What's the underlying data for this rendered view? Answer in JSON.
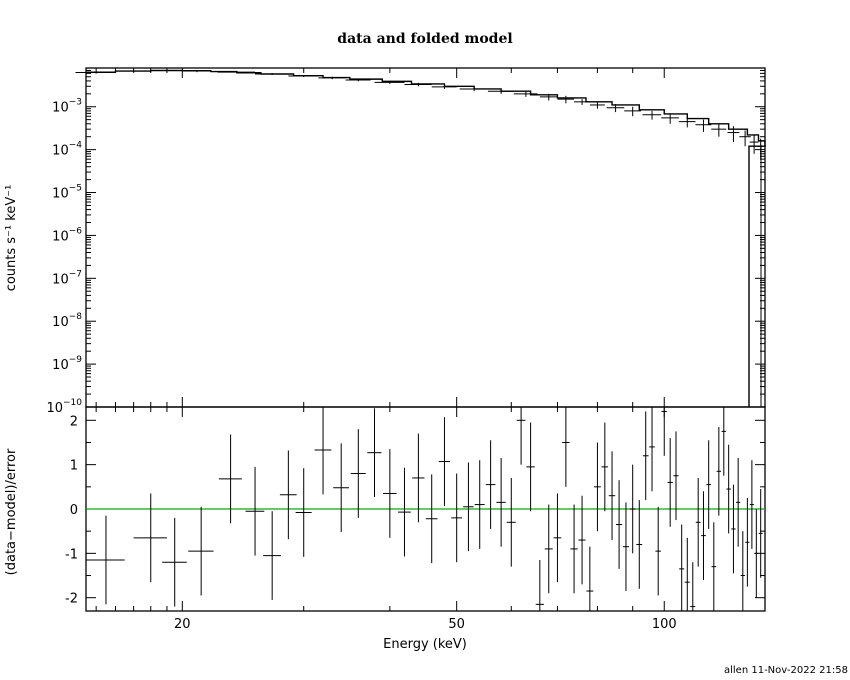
{
  "chart_data": [
    {
      "type": "scatter",
      "title": "data and folded model",
      "ylabel": "counts s⁻¹ keV⁻¹",
      "y_scale": "log",
      "ylim": [
        1e-10,
        0.008
      ],
      "xlim": [
        14.5,
        140
      ],
      "x_scale": "log",
      "y_ticks": [
        {
          "value": 1e-10,
          "base": "10",
          "exp": "−10"
        },
        {
          "value": 1e-09,
          "base": "10",
          "exp": "−9"
        },
        {
          "value": 1e-08,
          "base": "10",
          "exp": "−8"
        },
        {
          "value": 1e-07,
          "base": "10",
          "exp": "−7"
        },
        {
          "value": 1e-06,
          "base": "10",
          "exp": "−6"
        },
        {
          "value": 1e-05,
          "base": "10",
          "exp": "−5"
        },
        {
          "value": 0.0001,
          "base": "10",
          "exp": "−4"
        },
        {
          "value": 0.001,
          "base": "10",
          "exp": "−3"
        }
      ],
      "series": [
        {
          "role": "data",
          "color": "#000000",
          "x": [
            15,
            17,
            19,
            21,
            24,
            27,
            30,
            33,
            36,
            40,
            44,
            48,
            53,
            58,
            63,
            68,
            72,
            76,
            80,
            85,
            90,
            96,
            102,
            108,
            114,
            120,
            126,
            131,
            135,
            138
          ],
          "y": [
            0.0063,
            0.0068,
            0.007,
            0.0068,
            0.0064,
            0.0058,
            0.0052,
            0.0047,
            0.0042,
            0.0037,
            0.0033,
            0.0029,
            0.0026,
            0.0023,
            0.002,
            0.0017,
            0.0015,
            0.0013,
            0.0011,
            0.00095,
            0.0008,
            0.00065,
            0.00055,
            0.00045,
            0.00038,
            0.0003,
            0.00025,
            0.0002,
            0.00015,
            0.00012
          ],
          "xerr": [
            1.0,
            1.0,
            1.0,
            1.0,
            1.5,
            1.5,
            1.5,
            1.5,
            1.5,
            2.0,
            2.0,
            2.0,
            2.5,
            2.5,
            2.5,
            2.0,
            2.0,
            2.0,
            2.0,
            2.5,
            2.5,
            3.0,
            3.0,
            3.0,
            3.0,
            3.0,
            2.5,
            2.5,
            2.0,
            1.5
          ],
          "yerr": [
            0.0004,
            0.0004,
            0.0004,
            0.0004,
            0.0004,
            0.0003,
            0.0003,
            0.0003,
            0.0003,
            0.0003,
            0.0003,
            0.0003,
            0.0003,
            0.0003,
            0.0003,
            0.0003,
            0.0003,
            0.0002,
            0.0002,
            0.0002,
            0.0002,
            0.00015,
            0.00015,
            0.00012,
            0.00012,
            0.0001,
            0.0001,
            8e-05,
            7e-05,
            6e-05
          ]
        },
        {
          "role": "model",
          "color": "#000000",
          "x": [
            14.5,
            16,
            18,
            20,
            22,
            24,
            26,
            29,
            32,
            35,
            39,
            43,
            48,
            53,
            58,
            64,
            70,
            77,
            84,
            92,
            100,
            108,
            116,
            124,
            132,
            137,
            140
          ],
          "y": [
            0.0064,
            0.0068,
            0.007,
            0.0069,
            0.0066,
            0.0062,
            0.0058,
            0.0053,
            0.0048,
            0.0044,
            0.0039,
            0.0034,
            0.003,
            0.0026,
            0.0023,
            0.0019,
            0.0016,
            0.0013,
            0.0011,
            0.00085,
            0.00068,
            0.00053,
            0.0004,
            0.0003,
            0.00022,
            0.00016,
            0.00012
          ]
        }
      ]
    },
    {
      "type": "scatter",
      "ylabel": "(data−model)/error",
      "xlabel": "Energy (keV)",
      "x_scale": "log",
      "xlim": [
        14.5,
        140
      ],
      "ylim": [
        -2.3,
        2.3
      ],
      "x_ticks": [
        20,
        50,
        100
      ],
      "y_ticks": [
        -2,
        -1,
        0,
        1,
        2
      ],
      "zero_line_color": "#00b000",
      "series": [
        {
          "role": "residuals",
          "color": "#000000",
          "x": [
            15.5,
            18,
            19.5,
            21.3,
            23.5,
            25.5,
            27,
            28.5,
            30,
            32,
            34,
            36,
            38,
            40,
            42,
            44,
            46,
            48,
            50,
            52,
            54,
            56,
            58,
            60,
            62,
            64,
            66,
            68,
            70,
            72,
            74,
            76,
            78,
            80,
            82,
            84,
            86,
            88,
            90,
            92,
            94,
            96,
            98,
            100,
            102,
            104,
            106,
            108,
            110,
            112,
            114,
            116,
            118,
            120,
            122,
            124,
            126,
            128,
            130,
            132,
            134,
            136,
            138
          ],
          "y": [
            -1.15,
            -0.65,
            -1.2,
            -0.95,
            0.68,
            -0.05,
            -1.05,
            0.32,
            -0.08,
            1.33,
            0.48,
            0.8,
            1.27,
            0.35,
            -0.07,
            0.7,
            -0.22,
            1.07,
            -0.2,
            0.05,
            0.1,
            0.55,
            0.15,
            -0.3,
            2.0,
            0.95,
            -2.15,
            -0.9,
            -0.65,
            1.5,
            -0.9,
            -0.7,
            -1.85,
            0.5,
            0.95,
            0.3,
            -0.35,
            -0.85,
            0.0,
            -0.8,
            1.2,
            1.4,
            -0.95,
            2.2,
            0.6,
            0.75,
            -1.35,
            -1.65,
            -2.2,
            -0.3,
            -0.6,
            0.55,
            -1.3,
            0.85,
            1.75,
            0.45,
            -0.45,
            0.15,
            -1.5,
            -0.75,
            0.1,
            -1.0,
            -0.55
          ],
          "xerr": [
            1.0,
            1.0,
            0.8,
            0.9,
            0.9,
            0.8,
            0.8,
            0.8,
            0.8,
            0.9,
            0.9,
            0.9,
            0.9,
            0.9,
            0.9,
            0.9,
            0.9,
            0.9,
            0.9,
            0.9,
            0.9,
            0.9,
            0.9,
            0.9,
            0.9,
            0.9,
            0.9,
            0.9,
            0.9,
            0.9,
            0.9,
            0.9,
            0.9,
            0.9,
            0.9,
            0.9,
            0.9,
            0.9,
            0.9,
            0.9,
            0.9,
            0.9,
            0.9,
            0.9,
            0.9,
            0.9,
            0.9,
            0.9,
            0.9,
            0.9,
            0.9,
            0.9,
            0.9,
            0.9,
            0.9,
            0.9,
            0.9,
            0.9,
            0.9,
            0.9,
            0.9,
            0.9,
            0.9
          ],
          "yerr": [
            1.0,
            1.0,
            1.0,
            1.0,
            1.0,
            1.0,
            1.0,
            1.0,
            1.0,
            1.0,
            1.0,
            1.0,
            1.0,
            1.0,
            1.0,
            1.0,
            1.0,
            1.0,
            1.0,
            1.0,
            1.0,
            1.0,
            1.0,
            1.0,
            1.0,
            1.0,
            1.0,
            1.0,
            1.0,
            1.0,
            1.0,
            1.0,
            1.0,
            1.0,
            1.0,
            1.0,
            1.0,
            1.0,
            1.0,
            1.0,
            1.0,
            1.0,
            1.0,
            1.0,
            1.0,
            1.0,
            1.0,
            1.0,
            1.0,
            1.0,
            1.0,
            1.0,
            1.0,
            1.0,
            1.0,
            1.0,
            1.0,
            1.0,
            1.0,
            1.0,
            1.0,
            1.0,
            1.0
          ]
        }
      ]
    }
  ],
  "footer": "allen 11-Nov-2022 21:58"
}
